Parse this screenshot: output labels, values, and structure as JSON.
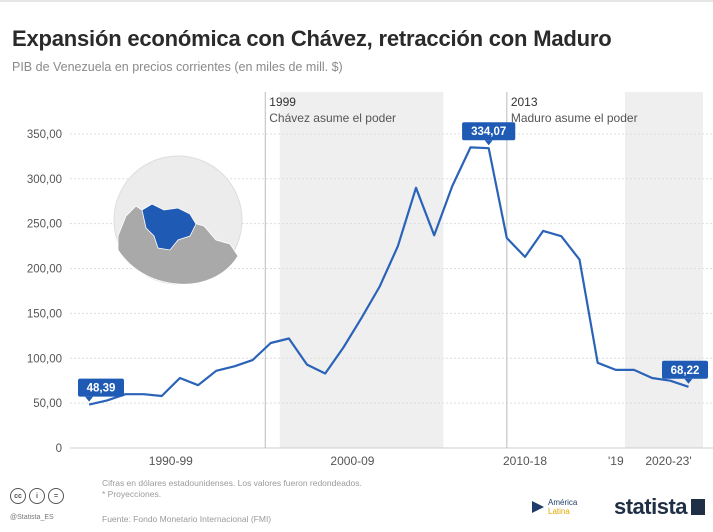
{
  "header": {
    "title": "Expansión económica con Chávez, retracción con Maduro",
    "subtitle": "PIB de Venezuela en precios corrientes (en miles de mill. $)"
  },
  "footer": {
    "note1": "Cifras en dólares estadounidenses. Los valores fueron redondeados.",
    "note2": "* Proyecciones.",
    "source": "Fuente: Fondo Monetario Internacional (FMI)",
    "handle": "@Statista_ES",
    "cc_icons": [
      "cc-icon",
      "by-icon",
      "nd-icon"
    ],
    "partner_logo_line1": "América",
    "partner_logo_line2": "Latina",
    "brand": "statista"
  },
  "colors": {
    "line": "#2b63b8",
    "label_bg": "#1f5bb5",
    "shade": "#efefef",
    "map_highlight": "#1f5bb5"
  },
  "chart_data": {
    "type": "line",
    "series": [
      {
        "x": [
          1990,
          1991,
          1992,
          1993,
          1994,
          1995,
          1996,
          1997,
          1998,
          1999,
          2000,
          2001,
          2002,
          2003,
          2004,
          2005,
          2006,
          2007,
          2008,
          2009,
          2010,
          2011,
          2012,
          2013,
          2014,
          2015,
          2016,
          2017,
          2018,
          2019,
          2020,
          2021,
          2022,
          2023
        ],
        "values": [
          48.39,
          53,
          60,
          60,
          58,
          78,
          70,
          86,
          91,
          98,
          117,
          122,
          93,
          83,
          112,
          145,
          180,
          225,
          290,
          237,
          292,
          335,
          334.07,
          234,
          213,
          242,
          236,
          210,
          95,
          87,
          87,
          78,
          75,
          68.22
        ]
      }
    ],
    "data_labels": [
      {
        "x": 1990,
        "text": "48,39"
      },
      {
        "x": 2012,
        "text": "334,07"
      },
      {
        "x": 2023,
        "text": "68,22"
      }
    ],
    "yticks": [
      0,
      50,
      100,
      150,
      200,
      250,
      300,
      350
    ],
    "ytick_labels": [
      "0",
      "50,00",
      "100,00",
      "150,00",
      "200,00",
      "250,00",
      "300,00",
      "350,00"
    ],
    "ylim": [
      0,
      370
    ],
    "xlim": [
      1989.5,
      2023.8
    ],
    "xgroups": [
      {
        "label": "1990-99",
        "center": 1994.5
      },
      {
        "label": "2000-09",
        "center": 2004.5
      },
      {
        "label": "2010-18",
        "center": 2014
      },
      {
        "label": "'19",
        "center": 2019
      },
      {
        "label": "2020-23'",
        "center": 2021.9
      }
    ],
    "shaded_ranges": [
      [
        2000.5,
        2009.5
      ],
      [
        2019.5,
        2023.8
      ]
    ],
    "annotations": [
      {
        "x": 1999.7,
        "year": "1999",
        "text": "Chávez asume el poder"
      },
      {
        "x": 2013.0,
        "year": "2013",
        "text": "Maduro asume el poder"
      }
    ],
    "grid": true
  }
}
